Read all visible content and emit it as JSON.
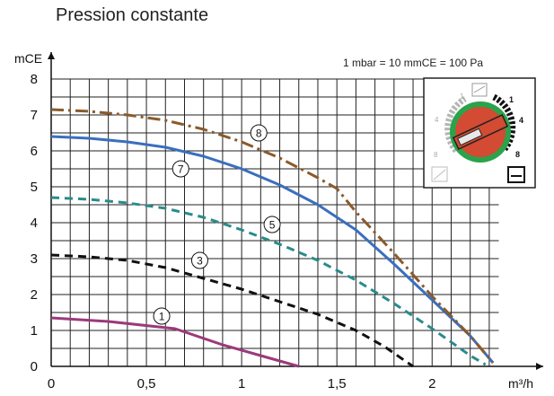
{
  "header": {
    "title": "Pression constante"
  },
  "chart_data": {
    "type": "line",
    "title": "Pression constante",
    "xlabel": "m³/h",
    "ylabel": "mCE",
    "note": "1 mbar = 10 mmCE = 100 Pa",
    "xlim": [
      0,
      2.35
    ],
    "ylim": [
      0,
      8
    ],
    "x_ticks": [
      0,
      0.5,
      1,
      1.5,
      2
    ],
    "x_tick_labels": [
      "0",
      "0,5",
      "1",
      "1,5",
      "2"
    ],
    "y_ticks": [
      0,
      1,
      2,
      3,
      4,
      5,
      6,
      7,
      8
    ],
    "y_tick_labels": [
      "0",
      "1",
      "2",
      "3",
      "4",
      "5",
      "6",
      "7",
      "8"
    ],
    "grid": true,
    "series": [
      {
        "name": "1",
        "color": "#9b3a7b",
        "dash": "solid",
        "x": [
          0,
          0.3,
          0.65,
          0.9,
          1.1,
          1.3
        ],
        "y": [
          1.35,
          1.25,
          1.05,
          0.6,
          0.3,
          0.0
        ],
        "label_at": [
          0.58,
          1.4
        ]
      },
      {
        "name": "3",
        "color": "#111111",
        "dash": "dashed",
        "x": [
          0,
          0.2,
          0.4,
          0.6,
          0.8,
          1.0,
          1.2,
          1.4,
          1.6,
          1.75,
          1.9
        ],
        "y": [
          3.1,
          3.05,
          2.95,
          2.75,
          2.45,
          2.15,
          1.8,
          1.45,
          1.0,
          0.55,
          0.0
        ],
        "label_at": [
          0.78,
          2.95
        ]
      },
      {
        "name": "5",
        "color": "#2a8b8b",
        "dash": "dashed",
        "x": [
          0,
          0.2,
          0.4,
          0.6,
          0.8,
          1.0,
          1.2,
          1.4,
          1.6,
          1.8,
          2.0,
          2.2,
          2.28
        ],
        "y": [
          4.7,
          4.65,
          4.55,
          4.4,
          4.15,
          3.8,
          3.4,
          2.95,
          2.4,
          1.75,
          1.05,
          0.3,
          0.05
        ],
        "label_at": [
          1.16,
          3.95
        ]
      },
      {
        "name": "7",
        "color": "#3a6fbf",
        "dash": "solid",
        "x": [
          0,
          0.2,
          0.4,
          0.6,
          0.8,
          1.0,
          1.2,
          1.4,
          1.6,
          1.8,
          2.0,
          2.2,
          2.32
        ],
        "y": [
          6.4,
          6.35,
          6.25,
          6.1,
          5.85,
          5.5,
          5.05,
          4.5,
          3.8,
          2.85,
          1.85,
          0.85,
          0.1
        ],
        "label_at": [
          0.68,
          5.5
        ]
      },
      {
        "name": "8",
        "color": "#8b5a2b",
        "dash": "dashdot",
        "x": [
          0,
          0.2,
          0.4,
          0.6,
          0.8,
          1.0,
          1.2,
          1.4,
          1.5,
          1.6,
          1.8,
          2.0,
          2.2,
          2.32
        ],
        "y": [
          7.15,
          7.1,
          7.0,
          6.85,
          6.6,
          6.25,
          5.8,
          5.25,
          4.95,
          4.3,
          3.15,
          1.95,
          0.85,
          0.1
        ],
        "label_at": [
          1.09,
          6.5
        ]
      }
    ]
  },
  "legend_icon": {
    "dial_labels_left": [
      "1",
      "4",
      "8"
    ],
    "dial_labels_right": [
      "1",
      "4",
      "8"
    ],
    "dial_color": "#d24b32",
    "ring_color": "#2aa34a"
  }
}
